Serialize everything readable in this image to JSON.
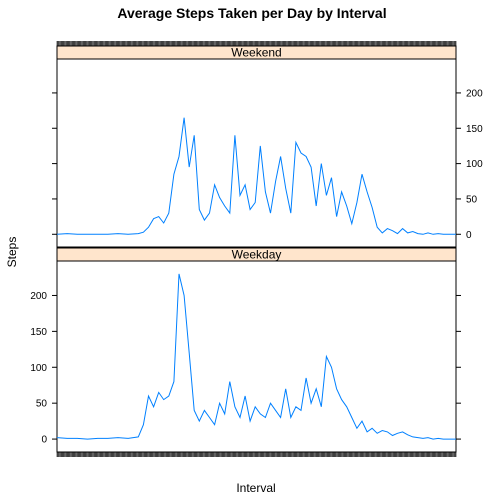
{
  "chart_data": {
    "type": "line",
    "title": "Average Steps Taken per Day by Interval",
    "xlabel": "Interval",
    "ylabel": "Steps",
    "ylim": [
      -18,
      248
    ],
    "yticks": [
      0,
      50,
      100,
      150,
      200
    ],
    "xlim": [
      0,
      2355
    ],
    "line_color": "#0080ff",
    "strip_color": "#ffe5cc",
    "grid": false,
    "panels": [
      {
        "name": "Weekend",
        "x": [
          0,
          60,
          120,
          180,
          240,
          300,
          360,
          420,
          480,
          510,
          540,
          570,
          600,
          630,
          660,
          690,
          720,
          750,
          780,
          810,
          840,
          870,
          900,
          930,
          960,
          990,
          1020,
          1050,
          1080,
          1110,
          1140,
          1170,
          1200,
          1230,
          1260,
          1290,
          1320,
          1350,
          1380,
          1410,
          1440,
          1470,
          1500,
          1530,
          1560,
          1590,
          1620,
          1650,
          1680,
          1710,
          1740,
          1770,
          1800,
          1830,
          1860,
          1890,
          1920,
          1950,
          1980,
          2010,
          2040,
          2070,
          2100,
          2130,
          2160,
          2190,
          2220,
          2250,
          2280,
          2310,
          2355
        ],
        "y": [
          0,
          1,
          0,
          0,
          0,
          0,
          1,
          0,
          1,
          3,
          10,
          22,
          25,
          16,
          30,
          85,
          110,
          165,
          95,
          140,
          35,
          20,
          30,
          70,
          52,
          40,
          30,
          140,
          55,
          70,
          35,
          45,
          125,
          60,
          30,
          75,
          110,
          65,
          30,
          130,
          115,
          110,
          95,
          40,
          100,
          55,
          80,
          25,
          60,
          40,
          15,
          45,
          85,
          60,
          38,
          10,
          2,
          8,
          5,
          1,
          8,
          2,
          4,
          1,
          0,
          2,
          0,
          1,
          0,
          0,
          0
        ]
      },
      {
        "name": "Weekday",
        "x": [
          0,
          60,
          120,
          180,
          240,
          300,
          360,
          420,
          480,
          510,
          540,
          570,
          600,
          630,
          660,
          690,
          720,
          750,
          780,
          810,
          840,
          870,
          900,
          930,
          960,
          990,
          1020,
          1050,
          1080,
          1110,
          1140,
          1170,
          1200,
          1230,
          1260,
          1290,
          1320,
          1350,
          1380,
          1410,
          1440,
          1470,
          1500,
          1530,
          1560,
          1590,
          1620,
          1650,
          1680,
          1710,
          1740,
          1770,
          1800,
          1830,
          1860,
          1890,
          1920,
          1950,
          1980,
          2010,
          2040,
          2070,
          2100,
          2130,
          2160,
          2190,
          2220,
          2250,
          2280,
          2310,
          2355
        ],
        "y": [
          2,
          1,
          1,
          0,
          1,
          1,
          2,
          1,
          3,
          20,
          60,
          45,
          65,
          55,
          60,
          80,
          230,
          200,
          120,
          40,
          25,
          40,
          30,
          20,
          50,
          35,
          80,
          45,
          30,
          60,
          25,
          45,
          35,
          30,
          50,
          40,
          30,
          70,
          30,
          45,
          40,
          85,
          50,
          70,
          45,
          115,
          100,
          70,
          55,
          45,
          30,
          15,
          25,
          10,
          15,
          8,
          12,
          10,
          5,
          8,
          10,
          6,
          3,
          2,
          1,
          2,
          0,
          1,
          0,
          0,
          0
        ]
      }
    ]
  }
}
